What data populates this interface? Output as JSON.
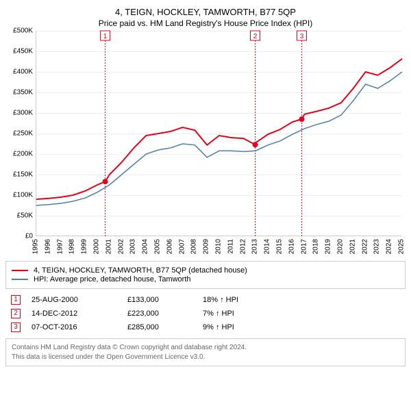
{
  "title": "4, TEIGN, HOCKLEY, TAMWORTH, B77 5QP",
  "subtitle": "Price paid vs. HM Land Registry's House Price Index (HPI)",
  "chart": {
    "type": "line",
    "x_years": [
      1995,
      1996,
      1997,
      1998,
      1999,
      2000,
      2001,
      2002,
      2003,
      2004,
      2005,
      2006,
      2007,
      2008,
      2009,
      2010,
      2011,
      2012,
      2013,
      2014,
      2015,
      2016,
      2017,
      2018,
      2019,
      2020,
      2021,
      2022,
      2023,
      2024,
      2025
    ],
    "ylim": [
      0,
      500000
    ],
    "ytick_step": 50000,
    "y_tick_labels": [
      "£0",
      "£50K",
      "£100K",
      "£150K",
      "£200K",
      "£250K",
      "£300K",
      "£350K",
      "£400K",
      "£450K",
      "£500K"
    ],
    "grid_color": "#eeeeee",
    "axis_color": "#cccccc",
    "background_color": "#ffffff",
    "label_fontsize": 10,
    "title_fontsize": 13,
    "series": [
      {
        "name": "4, TEIGN, HOCKLEY, TAMWORTH, B77 5QP (detached house)",
        "color": "#e2001a",
        "width": 2,
        "x": [
          1995,
          1996,
          1997,
          1998,
          1999,
          2000,
          2000.65,
          2001,
          2002,
          2003,
          2004,
          2005,
          2006,
          2007,
          2008,
          2009,
          2010,
          2011,
          2012,
          2012.95,
          2013,
          2014,
          2015,
          2016,
          2016.77,
          2017,
          2018,
          2019,
          2020,
          2021,
          2022,
          2023,
          2024,
          2025
        ],
        "y": [
          90000,
          92000,
          95000,
          100000,
          110000,
          125000,
          133000,
          150000,
          180000,
          215000,
          245000,
          250000,
          255000,
          265000,
          258000,
          222000,
          245000,
          240000,
          238000,
          223000,
          228000,
          248000,
          260000,
          278000,
          285000,
          297000,
          304000,
          312000,
          325000,
          360000,
          400000,
          392000,
          410000,
          432000
        ]
      },
      {
        "name": "HPI: Average price, detached house, Tamworth",
        "color": "#4a7fb0",
        "width": 1.5,
        "x": [
          1995,
          1996,
          1997,
          1998,
          1999,
          2000,
          2001,
          2002,
          2003,
          2004,
          2005,
          2006,
          2007,
          2008,
          2009,
          2010,
          2011,
          2012,
          2013,
          2014,
          2015,
          2016,
          2017,
          2018,
          2019,
          2020,
          2021,
          2022,
          2023,
          2024,
          2025
        ],
        "y": [
          75000,
          77000,
          80000,
          85000,
          93000,
          107000,
          125000,
          150000,
          175000,
          200000,
          210000,
          215000,
          225000,
          222000,
          192000,
          208000,
          208000,
          206000,
          208000,
          222000,
          232000,
          248000,
          262000,
          272000,
          280000,
          295000,
          330000,
          370000,
          360000,
          378000,
          400000
        ]
      }
    ],
    "markers": [
      {
        "n": "1",
        "year": 2000.65,
        "price": 133000,
        "color": "#e2001a"
      },
      {
        "n": "2",
        "year": 2012.95,
        "price": 223000,
        "color": "#e2001a"
      },
      {
        "n": "3",
        "year": 2016.77,
        "price": 285000,
        "color": "#e2001a"
      }
    ]
  },
  "legend": {
    "rows": [
      {
        "color": "#e2001a",
        "label": "4, TEIGN, HOCKLEY, TAMWORTH, B77 5QP (detached house)"
      },
      {
        "color": "#4a7fb0",
        "label": "HPI: Average price, detached house, Tamworth"
      }
    ]
  },
  "events": [
    {
      "n": "1",
      "color": "#e2001a",
      "date": "25-AUG-2000",
      "price": "£133,000",
      "diff": "18% ↑ HPI"
    },
    {
      "n": "2",
      "color": "#e2001a",
      "date": "14-DEC-2012",
      "price": "£223,000",
      "diff": "7% ↑ HPI"
    },
    {
      "n": "3",
      "color": "#e2001a",
      "date": "07-OCT-2016",
      "price": "£285,000",
      "diff": "9% ↑ HPI"
    }
  ],
  "footer": {
    "line1": "Contains HM Land Registry data © Crown copyright and database right 2024.",
    "line2": "This data is licensed under the Open Government Licence v3.0."
  }
}
